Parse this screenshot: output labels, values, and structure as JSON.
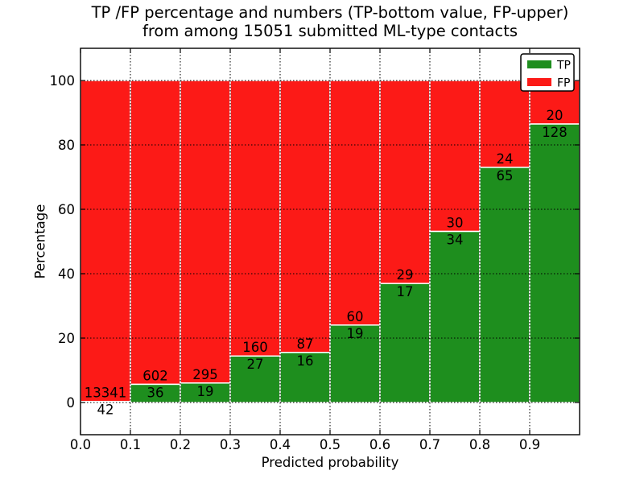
{
  "figure": {
    "title_line1": "TP /FP percentage and numbers (TP-bottom value, FP-upper)",
    "title_line2": "from among 15051 submitted ML-type contacts",
    "xlabel": "Predicted probability",
    "ylabel": "Percentage"
  },
  "legend": {
    "position": "upper-right",
    "items": [
      {
        "label": "TP",
        "color": "#1e8e1e"
      },
      {
        "label": "FP",
        "color": "#fc1a17"
      }
    ]
  },
  "chart_data": {
    "type": "bar",
    "stacked": true,
    "percent_stacked_to_100": true,
    "title": "TP /FP percentage and numbers (TP-bottom value, FP-upper) from among 15051 submitted ML-type contacts",
    "xlabel": "Predicted probability",
    "ylabel": "Percentage",
    "total_contacts": 15051,
    "bin_edges": [
      0.0,
      0.1,
      0.2,
      0.3,
      0.4,
      0.5,
      0.6,
      0.7,
      0.8,
      0.9,
      1.0
    ],
    "categories": [
      "0.0-0.1",
      "0.1-0.2",
      "0.2-0.3",
      "0.3-0.4",
      "0.4-0.5",
      "0.5-0.6",
      "0.6-0.7",
      "0.7-0.8",
      "0.8-0.9",
      "0.9-1.0"
    ],
    "series": [
      {
        "name": "TP",
        "color": "#1e8e1e",
        "values": [
          42,
          36,
          19,
          27,
          16,
          19,
          17,
          34,
          65,
          128
        ]
      },
      {
        "name": "FP",
        "color": "#fc1a17",
        "values": [
          13341,
          602,
          295,
          160,
          87,
          60,
          29,
          30,
          24,
          20
        ]
      }
    ],
    "tp_percent_of_bin": [
      0.31,
      5.64,
      6.05,
      14.44,
      15.53,
      24.05,
      36.96,
      53.13,
      73.03,
      86.49
    ],
    "xlim": [
      0.0,
      1.0
    ],
    "ylim": [
      -10,
      110
    ],
    "xticks": [
      "0.0",
      "0.1",
      "0.2",
      "0.3",
      "0.4",
      "0.5",
      "0.6",
      "0.7",
      "0.8",
      "0.9"
    ],
    "yticks": [
      0,
      20,
      40,
      60,
      80,
      100
    ],
    "grid": "dotted-black-above-bars",
    "bar_edge_color": "#ffffff",
    "axis_color": "#000000"
  }
}
